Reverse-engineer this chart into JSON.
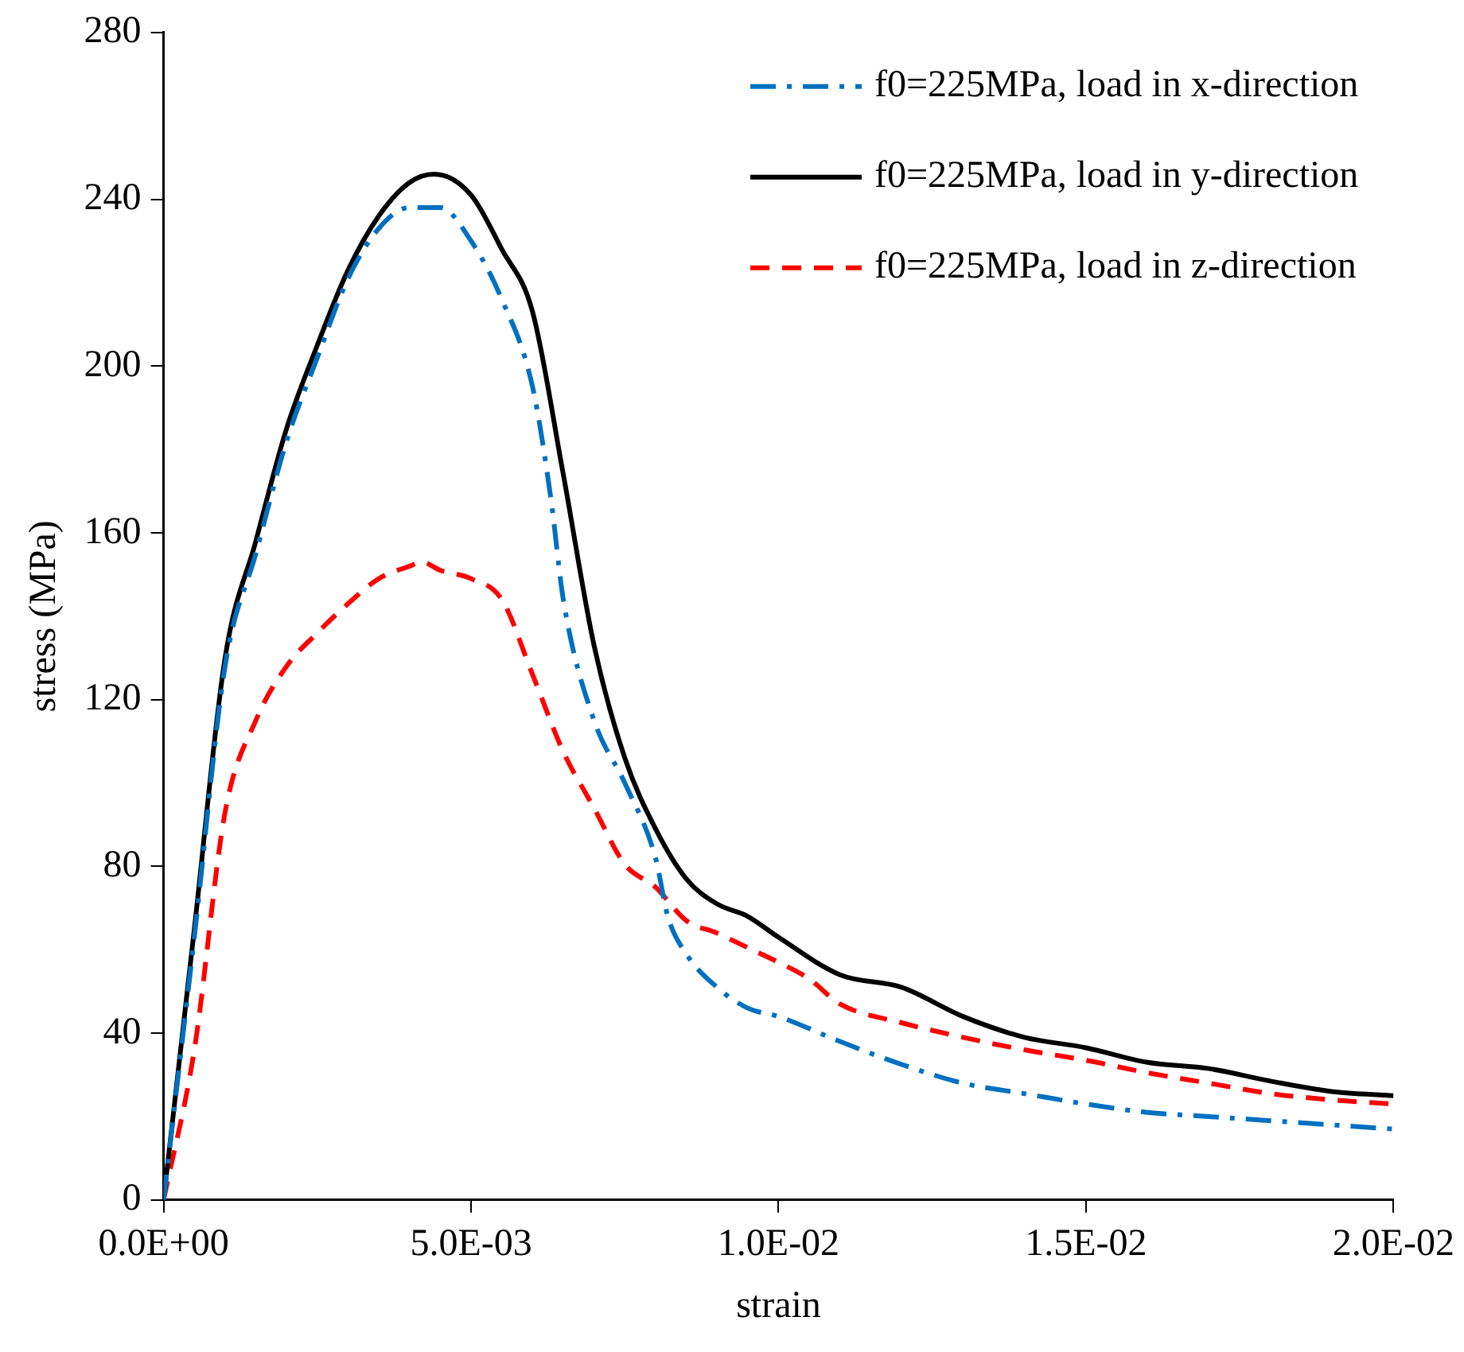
{
  "chart_data": {
    "type": "line",
    "xlabel": "strain",
    "ylabel": "stress (MPa)",
    "xlim": [
      0,
      0.02
    ],
    "xticks": [
      {
        "value": 0,
        "label": "0.0E+00"
      },
      {
        "value": 0.005,
        "label": "5.0E-03"
      },
      {
        "value": 0.01,
        "label": "1.0E-02"
      },
      {
        "value": 0.015,
        "label": "1.5E-02"
      },
      {
        "value": 0.02,
        "label": "2.0E-02"
      }
    ],
    "ylim": [
      0,
      280
    ],
    "yticks": [
      0,
      40,
      80,
      120,
      160,
      200,
      240,
      280
    ],
    "grid": false,
    "legend": "top right",
    "marker": "none",
    "series": [
      {
        "name": "f0=225MPa, load in x-direction",
        "color": "#0070c0",
        "line_style": "dashdot",
        "x": [
          0,
          0.0005,
          0.001,
          0.0015,
          0.002,
          0.0025,
          0.003,
          0.0035,
          0.004,
          0.0045,
          0.005,
          0.0055,
          0.006,
          0.0063,
          0.0065,
          0.007,
          0.0075,
          0.008,
          0.0082,
          0.0085,
          0.009,
          0.0095,
          0.01,
          0.011,
          0.012,
          0.013,
          0.014,
          0.015,
          0.016,
          0.017,
          0.018,
          0.019,
          0.02
        ],
        "values": [
          0,
          63,
          128,
          155,
          182,
          202,
          221,
          233,
          238,
          238,
          230,
          216,
          195,
          168,
          144,
          115,
          100,
          82,
          68,
          59,
          51,
          46,
          44,
          38,
          32.5,
          28,
          25.5,
          23,
          21,
          20,
          19,
          18,
          17
        ]
      },
      {
        "name": "f0=225MPa, load in y-direction",
        "color": "#000000",
        "line_style": "solid",
        "x": [
          0,
          0.0005,
          0.001,
          0.0015,
          0.002,
          0.0025,
          0.003,
          0.0035,
          0.004,
          0.0044,
          0.005,
          0.0055,
          0.006,
          0.0065,
          0.007,
          0.0075,
          0.008,
          0.0085,
          0.009,
          0.0095,
          0.01,
          0.011,
          0.012,
          0.013,
          0.014,
          0.015,
          0.016,
          0.017,
          0.018,
          0.019,
          0.02
        ],
        "values": [
          0,
          65,
          130,
          158,
          185,
          205,
          223,
          236,
          244,
          246,
          241,
          228,
          213,
          174,
          133,
          106,
          89,
          77,
          71,
          68,
          63,
          54,
          51,
          44,
          39,
          36.5,
          33,
          31.5,
          28.5,
          26,
          25
        ]
      },
      {
        "name": "f0=225MPa, load in z-direction",
        "color": "#ff0000",
        "line_style": "dashed",
        "x": [
          0,
          0.0005,
          0.001,
          0.0015,
          0.002,
          0.0025,
          0.003,
          0.0035,
          0.004,
          0.0042,
          0.0045,
          0.005,
          0.0055,
          0.006,
          0.0065,
          0.007,
          0.0075,
          0.008,
          0.0085,
          0.009,
          0.0095,
          0.01,
          0.0105,
          0.011,
          0.012,
          0.013,
          0.014,
          0.015,
          0.016,
          0.017,
          0.018,
          0.019,
          0.02
        ],
        "values": [
          0,
          36,
          93,
          115,
          128,
          136,
          143,
          149,
          152,
          153,
          151,
          149,
          144,
          126,
          107.5,
          94,
          80.5,
          75,
          67,
          64,
          60.5,
          57,
          53,
          47,
          42.5,
          39,
          36,
          33.5,
          30.5,
          28,
          25.5,
          24,
          23
        ]
      }
    ]
  }
}
